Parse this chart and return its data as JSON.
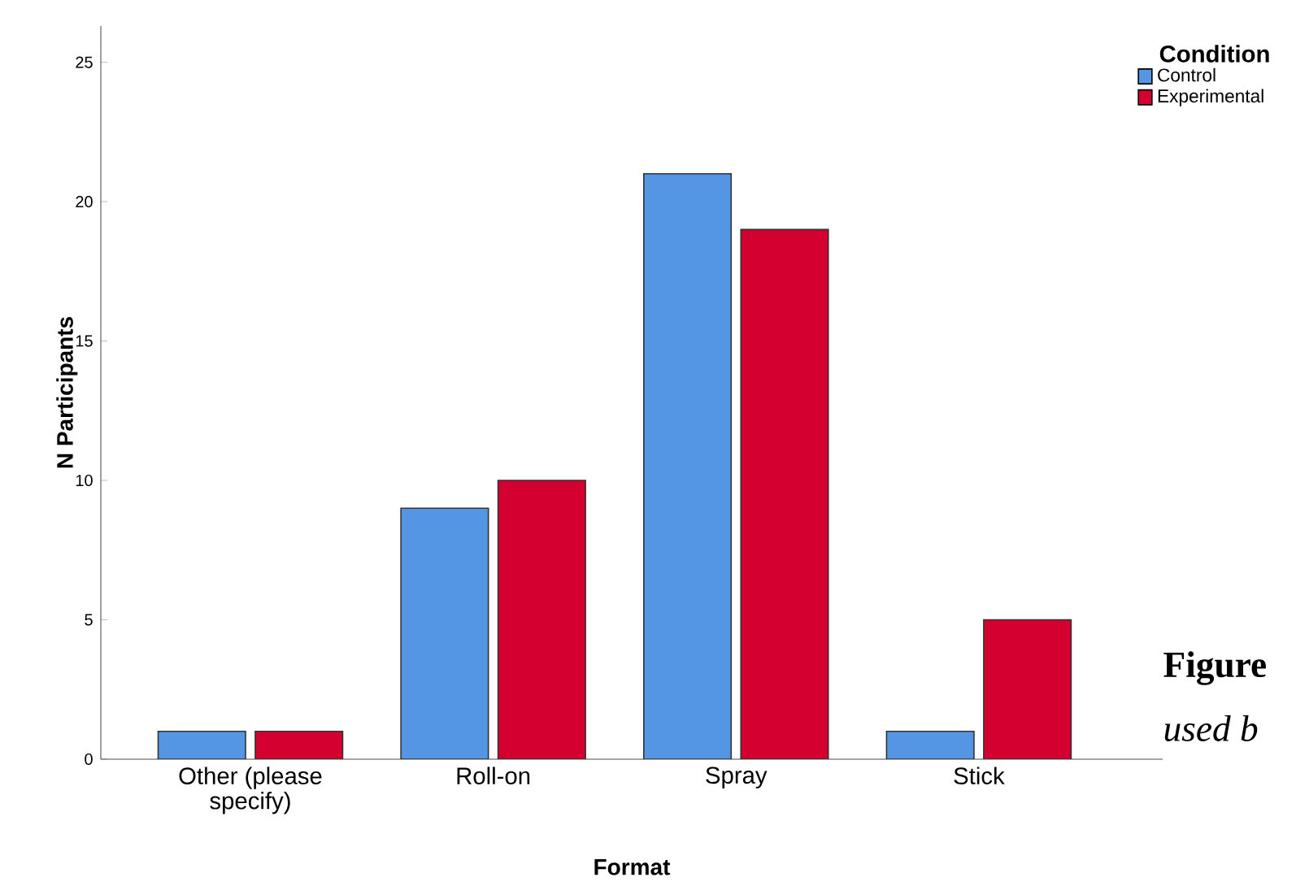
{
  "chart_data": {
    "type": "bar",
    "xlabel": "Format",
    "ylabel": "N Participants",
    "legend_title": "Condition",
    "categories": [
      "Other (please\nspecify)",
      "Roll-on",
      "Spray",
      "Stick"
    ],
    "series": [
      {
        "name": "Control",
        "color": "#5596e4",
        "values": [
          1,
          9,
          21,
          1
        ]
      },
      {
        "name": "Experimental",
        "color": "#d4002f",
        "values": [
          1,
          10,
          19,
          5
        ]
      }
    ],
    "ylim": [
      0,
      26.3
    ],
    "yticks": [
      0,
      5,
      10,
      15,
      20,
      25
    ],
    "grid": false,
    "legend": "top right",
    "annotations": [
      "Figure",
      "used b"
    ]
  }
}
